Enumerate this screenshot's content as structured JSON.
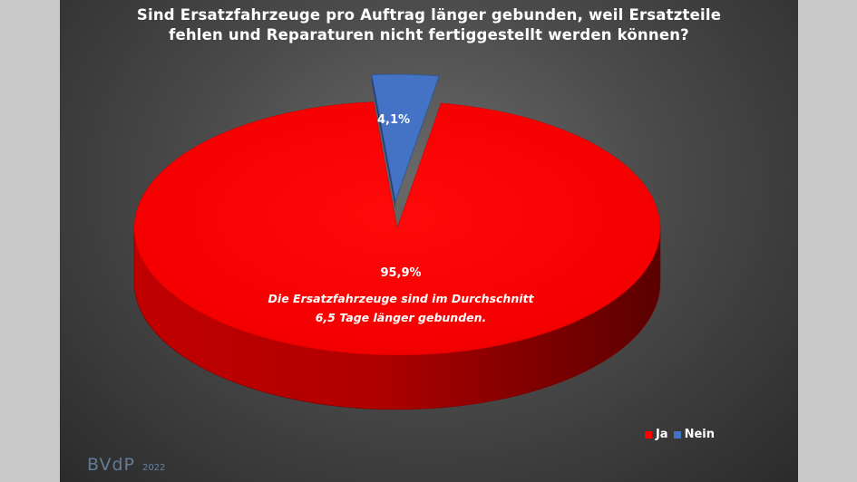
{
  "title_lines": [
    "Sind Ersatzfahrzeuge pro Auftrag länger gebunden, weil Ersatzteile",
    "fehlen und Reparaturen nicht fertiggestellt werden können?"
  ],
  "brand": {
    "logo": "BVdP",
    "year": "2022"
  },
  "colors": {
    "ja": "#ff0000",
    "nein": "#4472c4"
  },
  "chart_data": {
    "type": "pie",
    "title": "Sind Ersatzfahrzeuge pro Auftrag länger gebunden, weil Ersatzteile fehlen und Reparaturen nicht fertiggestellt werden können?",
    "style": "3d",
    "legend_position": "bottom-right",
    "slices": [
      {
        "label": "Ja",
        "value": 95.9,
        "display": "95,9%",
        "color": "#ff0000"
      },
      {
        "label": "Nein",
        "value": 4.1,
        "display": "4,1%",
        "color": "#4472c4"
      }
    ],
    "annotation": [
      "Die Ersatzfahrzeuge sind im Durchschnitt",
      "6,5 Tage länger gebunden."
    ]
  }
}
